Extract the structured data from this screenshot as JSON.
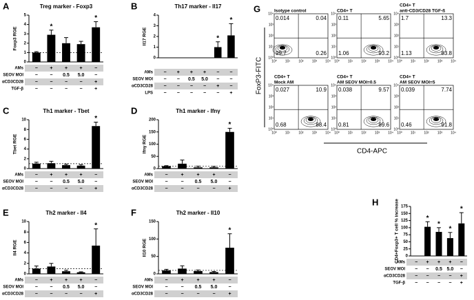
{
  "chart_data": [
    {
      "type": "bar",
      "panel": "A",
      "title": "Treg marker - Foxp3",
      "ylabel": "Foxp3 RGE",
      "ylim": [
        0,
        5
      ],
      "yticks": [
        0,
        1,
        2,
        3,
        4,
        5
      ],
      "reference_line": 1,
      "color": "#000000",
      "values": [
        1.0,
        2.9,
        2.0,
        1.9,
        3.7
      ],
      "errors": [
        0.1,
        0.5,
        0.6,
        0.3,
        0.6
      ],
      "annotations": [
        null,
        "*",
        null,
        null,
        "*"
      ],
      "rows": [
        {
          "name": "AMs",
          "cells": [
            "−",
            "+",
            "+",
            "+",
            "−"
          ]
        },
        {
          "name": "SEOV MOI",
          "cells": [
            "−",
            "−",
            "0.5",
            "5.0",
            "−"
          ]
        },
        {
          "name": "αCD3CD28",
          "cells": [
            "−",
            "−",
            "−",
            "−",
            "+"
          ]
        },
        {
          "name": "TGF-β",
          "cells": [
            "−",
            "−",
            "−",
            "−",
            "+"
          ]
        }
      ]
    },
    {
      "type": "bar",
      "panel": "B",
      "title": "Th17 marker - Il17",
      "ylabel": "Il17 RGE",
      "ylim": [
        0,
        4
      ],
      "yticks": [
        0,
        1,
        2,
        3,
        4
      ],
      "color": "#000000",
      "values": [
        0,
        0,
        0,
        0,
        1.0,
        2.1
      ],
      "errors": [
        0,
        0,
        0,
        0,
        0.5,
        1.1
      ],
      "annotations": [
        null,
        null,
        null,
        null,
        "*",
        "*"
      ],
      "rows": [
        {
          "name": "AMs",
          "cells": [
            "−",
            "+",
            "+",
            "+",
            "−",
            "−"
          ]
        },
        {
          "name": "SEOV MOI",
          "cells": [
            "−",
            "−",
            "0.5",
            "5.0",
            "−",
            "−"
          ]
        },
        {
          "name": "αCD3CD28",
          "cells": [
            "−",
            "−",
            "−",
            "−",
            "+",
            "−"
          ]
        },
        {
          "name": "LPS",
          "cells": [
            "−",
            "−",
            "−",
            "−",
            "−",
            "+"
          ]
        }
      ]
    },
    {
      "type": "bar",
      "panel": "C",
      "title": "Th1 marker - Tbet",
      "ylabel": "Tbet RGE",
      "ylim": [
        0,
        10
      ],
      "yticks": [
        0,
        2,
        4,
        6,
        8,
        10
      ],
      "reference_line": 1,
      "color": "#000000",
      "values": [
        1.0,
        1.1,
        0.7,
        0.6,
        8.7
      ],
      "errors": [
        0.3,
        0.4,
        0.2,
        0.2,
        0.8
      ],
      "annotations": [
        null,
        null,
        null,
        null,
        "*"
      ],
      "rows": [
        {
          "name": "AMs",
          "cells": [
            "−",
            "+",
            "+",
            "+",
            "−"
          ]
        },
        {
          "name": "SEOV MOI",
          "cells": [
            "−",
            "−",
            "0.5",
            "5.0",
            "−"
          ]
        },
        {
          "name": "αCD3CD28",
          "cells": [
            "−",
            "−",
            "−",
            "−",
            "+"
          ]
        }
      ]
    },
    {
      "type": "bar",
      "panel": "D",
      "title": "Th1 marker - Ifnγ",
      "ylabel": "Ifnγ RGE",
      "ylim": [
        0,
        200
      ],
      "yticks": [
        0,
        50,
        100,
        150,
        200
      ],
      "reference_line": 10,
      "color": "#000000",
      "values": [
        10,
        20,
        5,
        5,
        150
      ],
      "errors": [
        2,
        15,
        5,
        4,
        15
      ],
      "annotations": [
        null,
        null,
        null,
        null,
        "*"
      ],
      "rows": [
        {
          "name": "AMs",
          "cells": [
            "−",
            "+",
            "+",
            "+",
            "−"
          ]
        },
        {
          "name": "SEOV MOI",
          "cells": [
            "−",
            "−",
            "0.5",
            "5.0",
            "−"
          ]
        },
        {
          "name": "αCD3CD28",
          "cells": [
            "−",
            "−",
            "−",
            "−",
            "+"
          ]
        }
      ]
    },
    {
      "type": "bar",
      "panel": "E",
      "title": "Th2 marker - Il4",
      "ylabel": "Il4 RGE",
      "ylim": [
        0,
        10
      ],
      "yticks": [
        0,
        2,
        4,
        6,
        8,
        10
      ],
      "reference_line": 1,
      "color": "#000000",
      "values": [
        1.0,
        1.4,
        0.5,
        0.3,
        5.4
      ],
      "errors": [
        0.5,
        0.6,
        0.2,
        0.1,
        3.2
      ],
      "annotations": [
        null,
        null,
        null,
        null,
        "*"
      ],
      "rows": [
        {
          "name": "AMs",
          "cells": [
            "−",
            "+",
            "+",
            "+",
            "−"
          ]
        },
        {
          "name": "SEOV MOI",
          "cells": [
            "−",
            "−",
            "0.5",
            "5.0",
            "−"
          ]
        },
        {
          "name": "αCD3CD28",
          "cells": [
            "−",
            "−",
            "−",
            "−",
            "+"
          ]
        }
      ]
    },
    {
      "type": "bar",
      "panel": "F",
      "title": "Th2 marker - Il10",
      "ylabel": "Il10 RGE",
      "ylim": [
        0,
        150
      ],
      "yticks": [
        0,
        50,
        100,
        150
      ],
      "reference_line": 10,
      "color": "#000000",
      "values": [
        10,
        15,
        8,
        5,
        75
      ],
      "errors": [
        3,
        8,
        3,
        2,
        40
      ],
      "annotations": [
        null,
        null,
        null,
        null,
        "*"
      ],
      "rows": [
        {
          "name": "AMs",
          "cells": [
            "−",
            "+",
            "+",
            "+",
            "−"
          ]
        },
        {
          "name": "SEOV MOI",
          "cells": [
            "−",
            "−",
            "0.5",
            "5.0",
            "−"
          ]
        },
        {
          "name": "αCD3CD28",
          "cells": [
            "−",
            "−",
            "−",
            "−",
            "+"
          ]
        }
      ]
    },
    {
      "type": "flow",
      "panel": "G",
      "ylabel": "FoxP3-FITC",
      "xlabel": "CD4-APC",
      "log": true,
      "xlim": [
        1,
        10000
      ],
      "ylim": [
        1,
        10000
      ],
      "ticks": [
        {
          "value": 1,
          "label": "10⁰"
        },
        {
          "value": 10,
          "label": "10¹"
        },
        {
          "value": 100,
          "label": "10²"
        },
        {
          "value": 1000,
          "label": "10³"
        },
        {
          "value": 10000,
          "label": "10⁴"
        }
      ],
      "plots": [
        {
          "title": [
            "Isotype control"
          ],
          "quadrants": {
            "ul": 0.014,
            "ur": 0.04,
            "ll": 99.7,
            "lr": 0.26
          }
        },
        {
          "title": [
            "CD4+ T"
          ],
          "quadrants": {
            "ul": 0.11,
            "ur": 5.65,
            "ll": 1.06,
            "lr": 93.2
          }
        },
        {
          "title": [
            "CD4+ T",
            "anti-CD3/CD28 TGF-ß"
          ],
          "quadrants": {
            "ul": 1.7,
            "ur": 13.3,
            "ll": 1.13,
            "lr": 83.8
          }
        },
        {
          "title": [
            "CD4+ T",
            "Mock AM"
          ],
          "quadrants": {
            "ul": 0.027,
            "ur": 10.9,
            "ll": 0.68,
            "lr": 88.4
          }
        },
        {
          "title": [
            "CD4+ T",
            "AM SEOV MOI=0.5"
          ],
          "quadrants": {
            "ul": 0.038,
            "ur": 9.57,
            "ll": 0.81,
            "lr": 89.6
          }
        },
        {
          "title": [
            "CD4+ T",
            "AM SEOV MOI=5"
          ],
          "quadrants": {
            "ul": 0.039,
            "ur": 7.74,
            "ll": 0.46,
            "lr": 91.8
          }
        }
      ]
    },
    {
      "type": "bar",
      "panel": "H",
      "ylabel": "CD4+Foxp3+ T cell % increase",
      "ylim": [
        0,
        175
      ],
      "yticks": [
        0,
        25,
        50,
        75,
        100,
        125,
        150,
        175
      ],
      "color": "#000000",
      "values": [
        0,
        103,
        85,
        63,
        115
      ],
      "errors": [
        0,
        18,
        15,
        20,
        38
      ],
      "annotations": [
        null,
        "*",
        "*",
        "*",
        "*"
      ],
      "rows": [
        {
          "name": "AMs",
          "cells": [
            "−",
            "+",
            "+",
            "+",
            "−"
          ]
        },
        {
          "name": "SEOV MOI",
          "cells": [
            "−",
            "−",
            "0.5",
            "5.0",
            "−"
          ]
        },
        {
          "name": "αCD3CD28",
          "cells": [
            "−",
            "−",
            "−",
            "−",
            "+"
          ]
        },
        {
          "name": "TGF-β",
          "cells": [
            "−",
            "−",
            "−",
            "−",
            "+"
          ]
        }
      ]
    }
  ]
}
